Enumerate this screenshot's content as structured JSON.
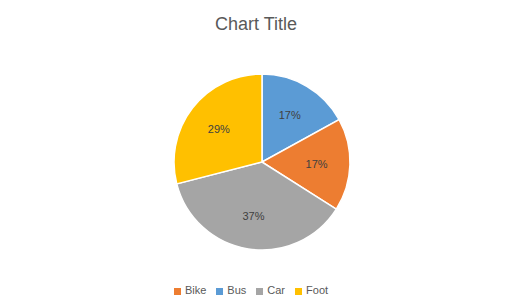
{
  "chart_data": {
    "type": "pie",
    "title": "Chart Title",
    "categories": [
      "Bus",
      "Bike",
      "Car",
      "Foot"
    ],
    "values": [
      17,
      17,
      37,
      29
    ],
    "value_labels": [
      "17%",
      "17%",
      "37%",
      "29%"
    ],
    "colors": [
      "#5b9bd5",
      "#ed7d31",
      "#a5a5a5",
      "#ffc000"
    ],
    "data_labels": true,
    "legend": "bottom"
  }
}
